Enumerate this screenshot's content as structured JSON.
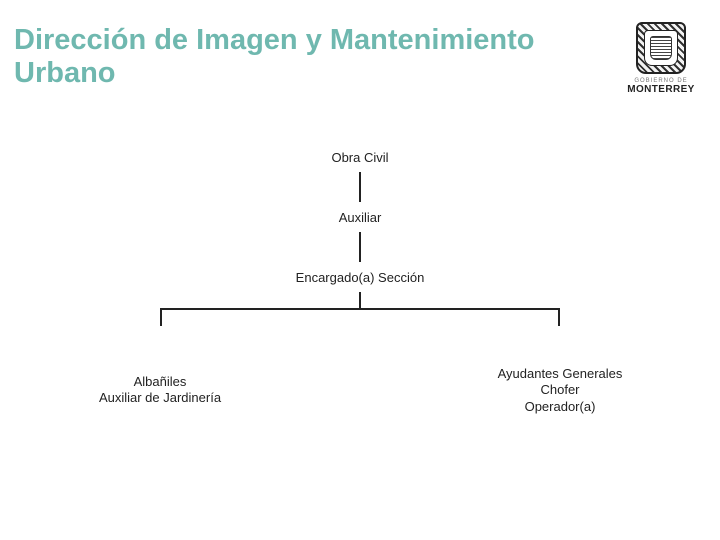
{
  "page_title": "Dirección de Imagen y Mantenimiento Urbano",
  "logo": {
    "top_text": "GOBIERNO DE",
    "main_text": "MONTERREY"
  },
  "org_chart": {
    "type": "tree",
    "background_color": "#ffffff",
    "title_color": "#6fb8af",
    "title_fontsize": 29,
    "node_fontsize": 13,
    "node_color": "#222222",
    "connector_color": "#222222",
    "connector_width": 2,
    "nodes": [
      {
        "id": "n0",
        "label": "Obra Civil",
        "level": 0
      },
      {
        "id": "n1",
        "label": "Auxiliar",
        "level": 1
      },
      {
        "id": "n2",
        "label": "Encargado(a) Sección",
        "level": 2
      },
      {
        "id": "n3",
        "lines": [
          "Albañiles",
          "Auxiliar de Jardinería"
        ],
        "level": 3,
        "branch": "left"
      },
      {
        "id": "n4",
        "lines": [
          "Ayudantes Generales",
          "Chofer",
          "Operador(a)"
        ],
        "level": 3,
        "branch": "right"
      }
    ],
    "edges": [
      {
        "from": "n0",
        "to": "n1"
      },
      {
        "from": "n1",
        "to": "n2"
      },
      {
        "from": "n2",
        "to": "n3"
      },
      {
        "from": "n2",
        "to": "n4"
      }
    ]
  }
}
